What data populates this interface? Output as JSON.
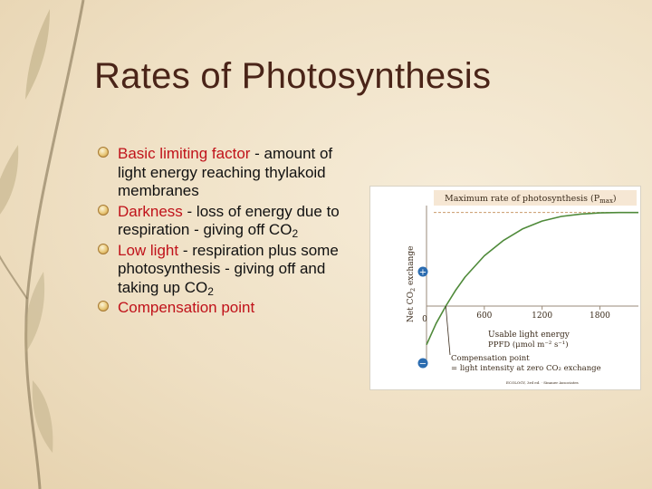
{
  "title": "Rates of Photosynthesis",
  "bullets": [
    {
      "key": "Basic limiting factor",
      "rest": " - amount of light energy reaching thylakoid membranes",
      "sub": ""
    },
    {
      "key": "Darkness",
      "rest": " - loss of energy due to respiration - giving off CO",
      "sub": "2"
    },
    {
      "key": "Low light",
      "rest": " - respiration plus some photosynthesis - giving off and taking up CO",
      "sub": "2"
    },
    {
      "key": "Compensation point",
      "rest": "",
      "sub": ""
    }
  ],
  "figure": {
    "max_label_main": "Maximum rate of photosynthesis (P",
    "max_label_sub": "max",
    "max_label_end": ")",
    "ylabel_a": "Net CO",
    "ylabel_sub": "2",
    "ylabel_b": " exchange",
    "plus": "+",
    "minus": "−",
    "zero": "0",
    "xlabel_line1": "Usable light energy",
    "xlabel_line2": "PPFD (μmol m⁻² s⁻¹)",
    "comp_line1": "Compensation point",
    "comp_line2": "= light intensity at zero CO₂ exchange",
    "credit": "ECOLOGY, 3rd ed. · Sinauer Associates"
  },
  "chart_data": {
    "type": "line",
    "x": [
      0,
      100,
      200,
      300,
      400,
      600,
      800,
      1000,
      1200,
      1400,
      1600,
      1800,
      2000,
      2200
    ],
    "series": [
      {
        "values": [
          -1.0,
          -0.45,
          0.0,
          0.4,
          0.75,
          1.3,
          1.7,
          2.0,
          2.2,
          2.32,
          2.38,
          2.41,
          2.42,
          2.42
        ]
      }
    ],
    "xticks": [
      600,
      1200,
      1800
    ],
    "xlim": [
      0,
      2200
    ],
    "ylim": [
      -1.5,
      2.6
    ],
    "pmax": 2.42,
    "colors": {
      "curve": "#4f8a3a",
      "pmax_line": "#c99a6a",
      "pmax_band": "#f6e7d4",
      "plus_marker": "#2b6cb0",
      "minus_marker": "#2b6cb0"
    }
  }
}
